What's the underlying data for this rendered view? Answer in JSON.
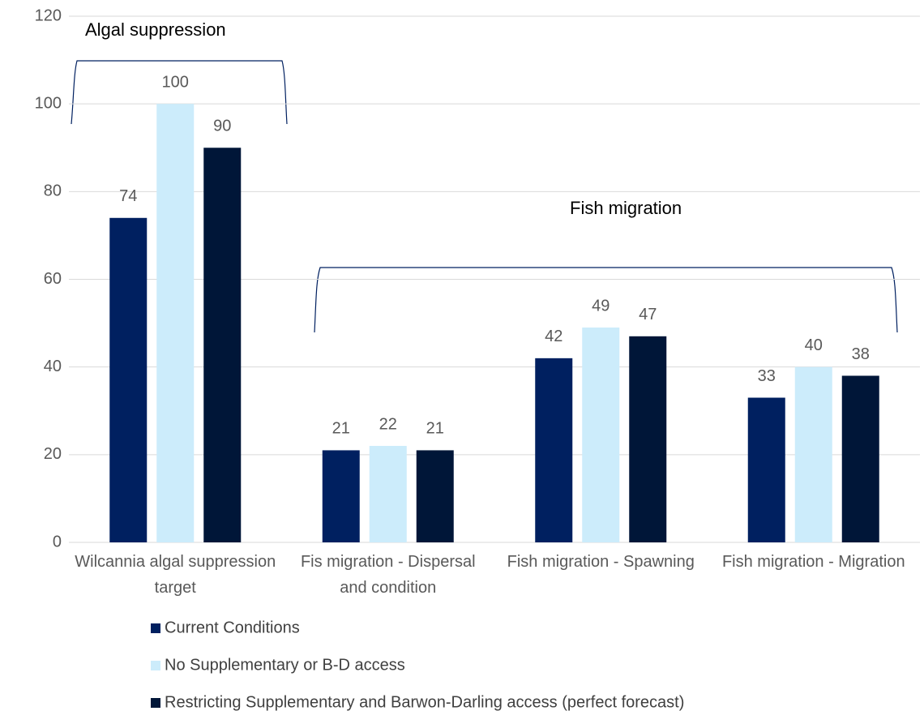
{
  "chart_data": {
    "type": "bar",
    "categories": [
      "Wilcannia algal suppression target",
      "Fis migration - Dispersal and condition",
      "Fish migration - Spawning",
      "Fish migration - Migration"
    ],
    "series": [
      {
        "name": "Current Conditions",
        "color": "#002060",
        "values": [
          74,
          21,
          42,
          33
        ]
      },
      {
        "name": "No Supplementary or B-D access",
        "color": "#ccecfb",
        "values": [
          100,
          22,
          49,
          40
        ]
      },
      {
        "name": "Restricting Supplementary and Barwon-Darling access (perfect forecast)",
        "color": "#001638",
        "values": [
          90,
          21,
          47,
          38
        ]
      }
    ],
    "annotations": [
      "Algal suppression",
      "Fish migration"
    ],
    "ylim": [
      0,
      120
    ],
    "yticks": [
      0,
      20,
      40,
      60,
      80,
      100,
      120
    ],
    "grid": true,
    "legend": "bottom"
  }
}
